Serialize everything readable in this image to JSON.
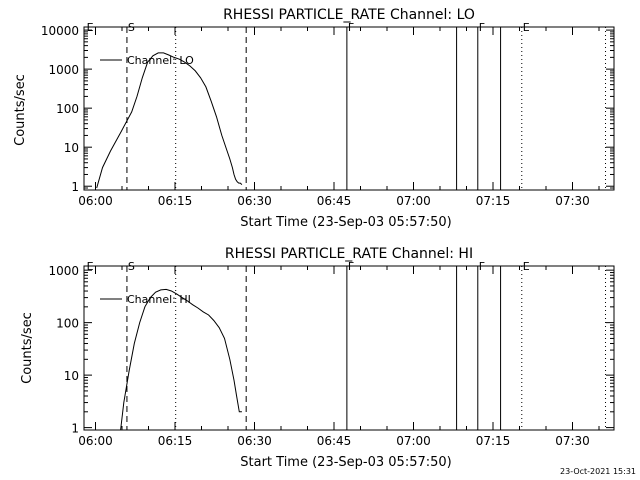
{
  "colors": {
    "background": "#ffffff",
    "foreground": "#000000"
  },
  "footer": {
    "timestamp": "23-Oct-2021 15:31"
  },
  "chart_data": [
    {
      "type": "line",
      "title": "RHESSI PARTICLE_RATE Channel: LO",
      "xlabel": "Start Time (23-Sep-03 05:57:50)",
      "ylabel": "Counts/sec",
      "yscale": "log",
      "xlim": [
        0,
        100
      ],
      "ylim": [
        0.8,
        12000
      ],
      "x_tick_labels": [
        {
          "t": 2.17,
          "label": "06:00"
        },
        {
          "t": 17.17,
          "label": "06:15"
        },
        {
          "t": 32.17,
          "label": "06:30"
        },
        {
          "t": 47.17,
          "label": "06:45"
        },
        {
          "t": 62.17,
          "label": "07:00"
        },
        {
          "t": 77.17,
          "label": "07:15"
        },
        {
          "t": 92.17,
          "label": "07:30"
        }
      ],
      "y_ticks": [
        {
          "v": 1,
          "label": "1"
        },
        {
          "v": 10,
          "label": "10"
        },
        {
          "v": 100,
          "label": "100"
        },
        {
          "v": 1000,
          "label": "1000"
        },
        {
          "v": 10000,
          "label": "10000"
        }
      ],
      "legend": "Channel: LO",
      "series": [
        {
          "name": "Channel: LO",
          "x": [
            2.4,
            3.5,
            5,
            7,
            9,
            10,
            11,
            12,
            13,
            14,
            15,
            16,
            17,
            18,
            19,
            20,
            21,
            22,
            23,
            24,
            25,
            26,
            27,
            27.5,
            28,
            28.3,
            28.6,
            28.9,
            29.2,
            29.5,
            29.8
          ],
          "y": [
            0.9,
            3,
            8,
            25,
            80,
            200,
            600,
            1500,
            2200,
            2600,
            2600,
            2300,
            2000,
            1800,
            1500,
            1200,
            900,
            600,
            350,
            150,
            60,
            20,
            8,
            5,
            3,
            2,
            1.5,
            1.3,
            1.2,
            1.2,
            1.1
          ]
        }
      ],
      "markers": [
        {
          "t": 0.3,
          "label": "E",
          "style": "none"
        },
        {
          "t": 8.1,
          "label": "S",
          "style": "dashed"
        },
        {
          "t": 17.3,
          "label": "",
          "style": "dotted"
        },
        {
          "t": 30.6,
          "label": "",
          "style": "dashed"
        },
        {
          "t": 49.6,
          "label": "F",
          "style": "solid"
        },
        {
          "t": 70.3,
          "label": "",
          "style": "solid"
        },
        {
          "t": 74.3,
          "label": "F",
          "style": "solid"
        },
        {
          "t": 78.6,
          "label": "",
          "style": "solid"
        },
        {
          "t": 82.6,
          "label": "E",
          "style": "dotted"
        },
        {
          "t": 98.4,
          "label": "",
          "style": "dotted"
        }
      ]
    },
    {
      "type": "line",
      "title": "RHESSI PARTICLE_RATE Channel: HI",
      "xlabel": "Start Time (23-Sep-03 05:57:50)",
      "ylabel": "Counts/sec",
      "yscale": "log",
      "xlim": [
        0,
        100
      ],
      "ylim": [
        0.9,
        1200
      ],
      "x_tick_labels": [
        {
          "t": 2.17,
          "label": "06:00"
        },
        {
          "t": 17.17,
          "label": "06:15"
        },
        {
          "t": 32.17,
          "label": "06:30"
        },
        {
          "t": 47.17,
          "label": "06:45"
        },
        {
          "t": 62.17,
          "label": "07:00"
        },
        {
          "t": 77.17,
          "label": "07:15"
        },
        {
          "t": 92.17,
          "label": "07:30"
        }
      ],
      "y_ticks": [
        {
          "v": 1,
          "label": "1"
        },
        {
          "v": 10,
          "label": "10"
        },
        {
          "v": 100,
          "label": "100"
        },
        {
          "v": 1000,
          "label": "1000"
        }
      ],
      "legend": "Channel: HI",
      "series": [
        {
          "name": "Channel: HI",
          "x": [
            6.9,
            7.5,
            8.5,
            9.5,
            10.5,
            11.5,
            12.5,
            13.5,
            14.5,
            15.5,
            16.5,
            17.5,
            18.5,
            19.5,
            20.5,
            21.5,
            22.5,
            23.5,
            24.5,
            25.5,
            26.5,
            27.5,
            28.3,
            28.8,
            29.3,
            29.8
          ],
          "y": [
            0.9,
            3,
            12,
            40,
            100,
            200,
            300,
            380,
            420,
            430,
            400,
            350,
            300,
            260,
            220,
            190,
            160,
            140,
            110,
            80,
            50,
            20,
            8,
            4,
            2,
            2
          ]
        }
      ],
      "markers": [
        {
          "t": 0.3,
          "label": "E",
          "style": "none"
        },
        {
          "t": 8.1,
          "label": "S",
          "style": "dashed"
        },
        {
          "t": 17.3,
          "label": "",
          "style": "dotted"
        },
        {
          "t": 30.6,
          "label": "",
          "style": "dashed"
        },
        {
          "t": 49.6,
          "label": "F",
          "style": "solid"
        },
        {
          "t": 70.3,
          "label": "",
          "style": "solid"
        },
        {
          "t": 74.3,
          "label": "F",
          "style": "solid"
        },
        {
          "t": 78.6,
          "label": "",
          "style": "solid"
        },
        {
          "t": 82.6,
          "label": "E",
          "style": "dotted"
        },
        {
          "t": 98.4,
          "label": "",
          "style": "dotted"
        }
      ]
    }
  ]
}
